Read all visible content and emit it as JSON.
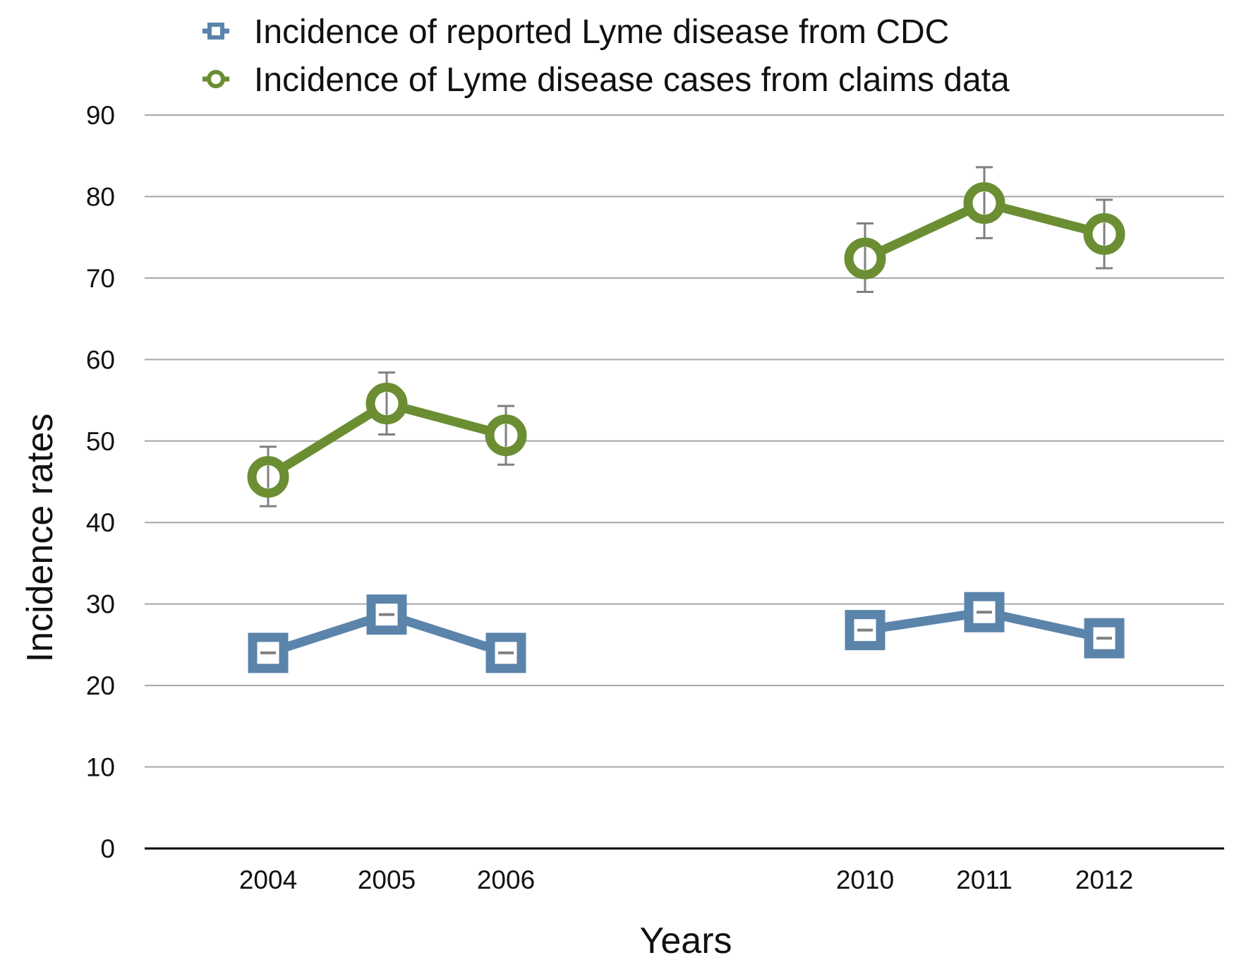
{
  "chart_data": {
    "type": "line",
    "title": "",
    "xlabel": "Years",
    "ylabel": "Incidence rates",
    "x": [
      "2004",
      "2005",
      "2006",
      "2010",
      "2011",
      "2012"
    ],
    "ylim": [
      0,
      90
    ],
    "yticks": [
      0,
      10,
      20,
      30,
      40,
      50,
      60,
      70,
      80,
      90
    ],
    "grid": "horizontal",
    "legend_position": "top",
    "series": [
      {
        "name": "Incidence of reported Lyme disease from CDC",
        "marker": "square",
        "color": "#5b84ab",
        "segments": [
          [
            "2004",
            "2005",
            "2006"
          ],
          [
            "2010",
            "2011",
            "2012"
          ]
        ],
        "values": [
          24.0,
          28.7,
          24.0,
          26.8,
          29.0,
          25.8
        ],
        "error": [
          0.3,
          0.3,
          0.3,
          0.3,
          0.3,
          0.3
        ]
      },
      {
        "name": "Incidence of Lyme disease cases from claims data",
        "marker": "circle",
        "color": "#6b8e33",
        "segments": [
          [
            "2004",
            "2005",
            "2006"
          ],
          [
            "2010",
            "2011",
            "2012"
          ]
        ],
        "values": [
          45.6,
          54.6,
          50.7,
          72.4,
          79.2,
          75.4
        ],
        "error_low": [
          3.6,
          3.8,
          3.6,
          4.1,
          4.3,
          4.2
        ],
        "error_high": [
          3.7,
          3.8,
          3.6,
          4.3,
          4.4,
          4.2
        ]
      }
    ],
    "error_bar_color": "#808080",
    "axis_color": "#000000",
    "grid_color": "#a6a6a6"
  }
}
